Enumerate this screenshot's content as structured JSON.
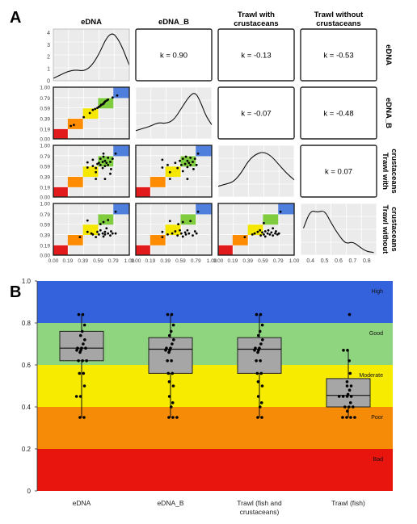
{
  "panel_a": {
    "label": "A",
    "columns": [
      "eDNA",
      "eDNA_B",
      "Trawl with crustaceans",
      "Trawl without crustaceans"
    ],
    "column_lines": [
      [
        "eDNA"
      ],
      [
        "eDNA_B"
      ],
      [
        "Trawl with",
        "crustaceans"
      ],
      [
        "Trawl without",
        "crustaceans"
      ]
    ],
    "row_lines": [
      [
        "eDNA"
      ],
      [
        "eDNA_B"
      ],
      [
        "Trawl with",
        "crustaceans"
      ],
      [
        "Trawl without",
        "crustaceans"
      ]
    ],
    "kappa": [
      {
        "row": 0,
        "col": 1,
        "text": "k = 0.90"
      },
      {
        "row": 0,
        "col": 2,
        "text": "k = -0.13"
      },
      {
        "row": 0,
        "col": 3,
        "text": "k = -0.53"
      },
      {
        "row": 1,
        "col": 2,
        "text": "k = -0.07"
      },
      {
        "row": 1,
        "col": 3,
        "text": "k = -0.48"
      },
      {
        "row": 2,
        "col": 3,
        "text": "k = 0.07"
      }
    ],
    "scatter_ticks": [
      "0.00",
      "0.19",
      "0.39",
      "0.59",
      "0.79",
      "1.00"
    ],
    "scatter_tick_values": [
      0,
      0.19,
      0.39,
      0.59,
      0.79,
      1.0
    ],
    "density_y_ticks": [
      "0",
      "1",
      "2",
      "3",
      "4"
    ],
    "density_x_ticks": [
      "0.4",
      "0.5",
      "0.6",
      "0.7",
      "0.8"
    ],
    "diag_colors": [
      "#e31a1c",
      "#ff8c00",
      "#f5e700",
      "#7fcd3f",
      "#4f7fdd"
    ]
  },
  "chart_data": [
    {
      "type": "heatmap",
      "title": "",
      "description_panel": "A",
      "scatter_pairs": [
        {
          "row": 1,
          "col": 0,
          "points": [
            [
              0.23,
              0.25
            ],
            [
              0.27,
              0.27
            ],
            [
              0.4,
              0.42
            ],
            [
              0.48,
              0.5
            ],
            [
              0.52,
              0.56
            ],
            [
              0.55,
              0.58
            ],
            [
              0.58,
              0.6
            ],
            [
              0.6,
              0.62
            ],
            [
              0.62,
              0.64
            ],
            [
              0.63,
              0.66
            ],
            [
              0.65,
              0.67
            ],
            [
              0.66,
              0.68
            ],
            [
              0.67,
              0.7
            ],
            [
              0.68,
              0.72
            ],
            [
              0.7,
              0.74
            ],
            [
              0.72,
              0.76
            ],
            [
              0.78,
              0.8
            ],
            [
              0.84,
              0.84
            ]
          ]
        },
        {
          "row": 2,
          "col": 0,
          "points": [
            [
              0.45,
              0.57
            ],
            [
              0.45,
              0.67
            ],
            [
              0.52,
              0.6
            ],
            [
              0.52,
              0.72
            ],
            [
              0.56,
              0.48
            ],
            [
              0.56,
              0.56
            ],
            [
              0.58,
              0.64
            ],
            [
              0.6,
              0.66
            ],
            [
              0.62,
              0.62
            ],
            [
              0.62,
              0.74
            ],
            [
              0.65,
              0.56
            ],
            [
              0.65,
              0.68
            ],
            [
              0.66,
              0.78
            ],
            [
              0.66,
              0.84
            ],
            [
              0.68,
              0.6
            ],
            [
              0.68,
              0.7
            ],
            [
              0.7,
              0.66
            ],
            [
              0.72,
              0.62
            ],
            [
              0.72,
              0.76
            ],
            [
              0.75,
              0.68
            ],
            [
              0.75,
              0.45
            ],
            [
              0.76,
              0.54
            ],
            [
              0.78,
              0.74
            ],
            [
              0.56,
              0.35
            ],
            [
              0.68,
              0.35
            ],
            [
              0.82,
              0.84
            ]
          ]
        },
        {
          "row": 3,
          "col": 0,
          "points": [
            [
              0.45,
              0.67
            ],
            [
              0.45,
              0.45
            ],
            [
              0.5,
              0.42
            ],
            [
              0.52,
              0.4
            ],
            [
              0.56,
              0.35
            ],
            [
              0.58,
              0.45
            ],
            [
              0.6,
              0.4
            ],
            [
              0.62,
              0.48
            ],
            [
              0.65,
              0.42
            ],
            [
              0.66,
              0.36
            ],
            [
              0.68,
              0.45
            ],
            [
              0.68,
              0.4
            ],
            [
              0.7,
              0.52
            ],
            [
              0.72,
              0.42
            ],
            [
              0.75,
              0.38
            ],
            [
              0.76,
              0.46
            ],
            [
              0.78,
              0.42
            ],
            [
              0.62,
              0.6
            ],
            [
              0.66,
              0.64
            ],
            [
              0.72,
              0.68
            ],
            [
              0.82,
              0.42
            ],
            [
              0.35,
              0.35
            ],
            [
              0.82,
              0.84
            ]
          ]
        },
        {
          "row": 2,
          "col": 1,
          "points": [
            [
              0.35,
              0.57
            ],
            [
              0.35,
              0.72
            ],
            [
              0.42,
              0.62
            ],
            [
              0.45,
              0.48
            ],
            [
              0.52,
              0.66
            ],
            [
              0.55,
              0.56
            ],
            [
              0.58,
              0.7
            ],
            [
              0.6,
              0.62
            ],
            [
              0.62,
              0.74
            ],
            [
              0.62,
              0.5
            ],
            [
              0.65,
              0.64
            ],
            [
              0.66,
              0.78
            ],
            [
              0.68,
              0.58
            ],
            [
              0.68,
              0.7
            ],
            [
              0.7,
              0.66
            ],
            [
              0.72,
              0.62
            ],
            [
              0.72,
              0.76
            ],
            [
              0.75,
              0.68
            ],
            [
              0.76,
              0.54
            ],
            [
              0.78,
              0.74
            ],
            [
              0.8,
              0.62
            ],
            [
              0.82,
              0.84
            ],
            [
              0.45,
              0.35
            ],
            [
              0.68,
              0.35
            ]
          ]
        },
        {
          "row": 3,
          "col": 1,
          "points": [
            [
              0.35,
              0.35
            ],
            [
              0.35,
              0.45
            ],
            [
              0.42,
              0.4
            ],
            [
              0.45,
              0.66
            ],
            [
              0.48,
              0.42
            ],
            [
              0.52,
              0.46
            ],
            [
              0.55,
              0.38
            ],
            [
              0.58,
              0.48
            ],
            [
              0.6,
              0.42
            ],
            [
              0.62,
              0.36
            ],
            [
              0.62,
              0.64
            ],
            [
              0.65,
              0.44
            ],
            [
              0.66,
              0.4
            ],
            [
              0.68,
              0.48
            ],
            [
              0.7,
              0.42
            ],
            [
              0.72,
              0.66
            ],
            [
              0.75,
              0.38
            ],
            [
              0.78,
              0.46
            ],
            [
              0.8,
              0.42
            ],
            [
              0.82,
              0.84
            ],
            [
              0.56,
              0.6
            ]
          ]
        },
        {
          "row": 3,
          "col": 2,
          "points": [
            [
              0.35,
              0.35
            ],
            [
              0.45,
              0.4
            ],
            [
              0.48,
              0.42
            ],
            [
              0.52,
              0.45
            ],
            [
              0.55,
              0.48
            ],
            [
              0.56,
              0.38
            ],
            [
              0.58,
              0.44
            ],
            [
              0.6,
              0.4
            ],
            [
              0.62,
              0.46
            ],
            [
              0.62,
              0.36
            ],
            [
              0.65,
              0.42
            ],
            [
              0.66,
              0.48
            ],
            [
              0.68,
              0.4
            ],
            [
              0.7,
              0.44
            ],
            [
              0.72,
              0.38
            ],
            [
              0.72,
              0.52
            ],
            [
              0.75,
              0.42
            ],
            [
              0.76,
              0.46
            ],
            [
              0.78,
              0.4
            ],
            [
              0.8,
              0.42
            ],
            [
              0.82,
              0.84
            ],
            [
              0.6,
              0.62
            ]
          ]
        }
      ],
      "densities": [
        {
          "col": 0,
          "curve": [
            [
              0,
              0.2
            ],
            [
              0.1,
              0.5
            ],
            [
              0.2,
              0.8
            ],
            [
              0.3,
              0.9
            ],
            [
              0.4,
              0.8
            ],
            [
              0.5,
              1.2
            ],
            [
              0.6,
              2.2
            ],
            [
              0.7,
              3.6
            ],
            [
              0.78,
              4.0
            ],
            [
              0.85,
              3.5
            ],
            [
              0.92,
              2.6
            ],
            [
              1.0,
              1.3
            ]
          ]
        },
        {
          "col": 1,
          "curve": [
            [
              0,
              0.35
            ],
            [
              0.1,
              0.45
            ],
            [
              0.2,
              0.55
            ],
            [
              0.3,
              0.7
            ],
            [
              0.4,
              0.65
            ],
            [
              0.5,
              0.8
            ],
            [
              0.6,
              1.3
            ],
            [
              0.7,
              1.8
            ],
            [
              0.78,
              2.0
            ],
            [
              0.85,
              1.6
            ],
            [
              0.92,
              1.0
            ],
            [
              1.0,
              0.6
            ]
          ]
        },
        {
          "col": 2,
          "curve": [
            [
              0,
              0.25
            ],
            [
              0.1,
              0.3
            ],
            [
              0.2,
              0.35
            ],
            [
              0.3,
              0.55
            ],
            [
              0.4,
              0.85
            ],
            [
              0.5,
              1.0
            ],
            [
              0.6,
              1.05
            ],
            [
              0.7,
              0.95
            ],
            [
              0.8,
              0.75
            ],
            [
              0.9,
              0.55
            ],
            [
              1.0,
              0.4
            ]
          ]
        },
        {
          "col": 3,
          "curve": [
            [
              0.35,
              0.6
            ],
            [
              0.4,
              1.0
            ],
            [
              0.45,
              0.95
            ],
            [
              0.5,
              1.0
            ],
            [
              0.55,
              0.7
            ],
            [
              0.6,
              0.45
            ],
            [
              0.65,
              0.25
            ],
            [
              0.7,
              0.3
            ],
            [
              0.75,
              0.18
            ],
            [
              0.8,
              0.08
            ],
            [
              0.85,
              0.06
            ]
          ]
        }
      ]
    },
    {
      "type": "box",
      "title": "",
      "xlabel": "",
      "ylabel": "",
      "ylim": [
        0,
        1.0
      ],
      "y_ticks": [
        "0",
        "0.2",
        "0.4",
        "0.6",
        "0.8",
        "1.0"
      ],
      "y_tick_values": [
        0,
        0.2,
        0.4,
        0.6,
        0.8,
        1.0
      ],
      "categories": [
        "eDNA",
        "eDNA_B",
        "Trawl (fish and crustaceans)",
        "Trawl (fish)"
      ],
      "category_lines": [
        [
          "eDNA"
        ],
        [
          "eDNA_B"
        ],
        [
          "Trawl (fish and",
          "crustaceans)"
        ],
        [
          "Trawl (fish)"
        ]
      ],
      "bands": [
        {
          "label": "Bad",
          "from": 0.0,
          "to": 0.2,
          "color": "#e8150f"
        },
        {
          "label": "Poor",
          "from": 0.2,
          "to": 0.4,
          "color": "#f58b06"
        },
        {
          "label": "Moderate",
          "from": 0.4,
          "to": 0.6,
          "color": "#f7ec00"
        },
        {
          "label": "Good",
          "from": 0.6,
          "to": 0.8,
          "color": "#8fd47e"
        },
        {
          "label": "High",
          "from": 0.8,
          "to": 1.0,
          "color": "#3462dc"
        }
      ],
      "boxes": [
        {
          "q1": 0.62,
          "median": 0.68,
          "q3": 0.76,
          "min": 0.35,
          "max": 0.84
        },
        {
          "q1": 0.56,
          "median": 0.675,
          "q3": 0.73,
          "min": 0.35,
          "max": 0.84
        },
        {
          "q1": 0.56,
          "median": 0.675,
          "q3": 0.73,
          "min": 0.35,
          "max": 0.84
        },
        {
          "q1": 0.4,
          "median": 0.455,
          "q3": 0.535,
          "min": 0.35,
          "max": 0.67
        }
      ],
      "points": [
        [
          0.84,
          0.84,
          0.79,
          0.76,
          0.74,
          0.72,
          0.7,
          0.68,
          0.68,
          0.68,
          0.67,
          0.67,
          0.66,
          0.62,
          0.62,
          0.62,
          0.56,
          0.56,
          0.5,
          0.45,
          0.45,
          0.35,
          0.35
        ],
        [
          0.84,
          0.84,
          0.79,
          0.76,
          0.74,
          0.72,
          0.7,
          0.68,
          0.68,
          0.67,
          0.67,
          0.66,
          0.62,
          0.62,
          0.56,
          0.56,
          0.52,
          0.5,
          0.45,
          0.42,
          0.4,
          0.35,
          0.35,
          0.35
        ],
        [
          0.84,
          0.84,
          0.79,
          0.76,
          0.74,
          0.72,
          0.7,
          0.68,
          0.68,
          0.67,
          0.67,
          0.66,
          0.62,
          0.62,
          0.56,
          0.56,
          0.52,
          0.5,
          0.45,
          0.42,
          0.4,
          0.35,
          0.35
        ],
        [
          0.84,
          0.67,
          0.67,
          0.62,
          0.56,
          0.52,
          0.5,
          0.5,
          0.48,
          0.46,
          0.45,
          0.45,
          0.45,
          0.45,
          0.42,
          0.4,
          0.4,
          0.4,
          0.38,
          0.35,
          0.35,
          0.35,
          0.35
        ]
      ]
    }
  ],
  "panel_b": {
    "label": "B"
  }
}
